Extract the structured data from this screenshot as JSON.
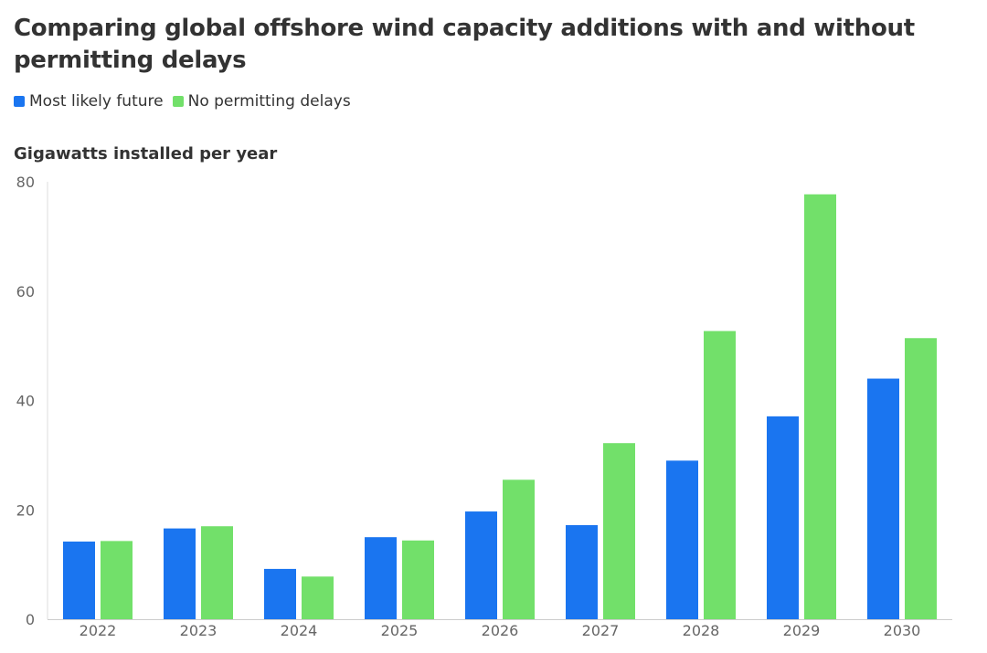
{
  "chart_data": {
    "type": "bar",
    "title": "Comparing global offshore wind capacity additions with and without permitting delays",
    "ylabel": "Gigawatts installed per year",
    "xlabel": "",
    "categories": [
      "2022",
      "2023",
      "2024",
      "2025",
      "2026",
      "2027",
      "2028",
      "2029",
      "2030"
    ],
    "series": [
      {
        "name": "Most likely future",
        "color": "#1a75f0",
        "values": [
          14.2,
          16.6,
          9.2,
          15.0,
          19.7,
          17.2,
          29.0,
          37.1,
          44.0
        ]
      },
      {
        "name": "No permitting delays",
        "color": "#72e06a",
        "values": [
          14.3,
          17.0,
          7.8,
          14.4,
          25.5,
          32.2,
          52.7,
          77.7,
          51.4
        ]
      }
    ],
    "ylim": [
      0,
      80
    ],
    "yticks": [
      0,
      20,
      40,
      60,
      80
    ],
    "grid": false,
    "legend_position": "top-left"
  }
}
